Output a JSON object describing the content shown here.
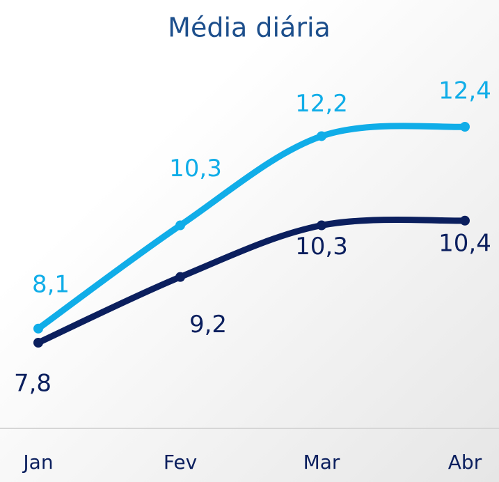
{
  "chart_data": {
    "type": "line",
    "title": "Média diária",
    "categories": [
      "Jan",
      "Fev",
      "Mar",
      "Abr"
    ],
    "series": [
      {
        "color": "#10ade8",
        "values": [
          8.1,
          10.3,
          12.2,
          12.4
        ],
        "value_labels": [
          "8,1",
          "10,3",
          "12,2",
          "12,4"
        ]
      },
      {
        "color": "#0b1f5e",
        "values": [
          7.8,
          9.2,
          10.3,
          10.4
        ],
        "value_labels": [
          "7,8",
          "9,2",
          "10,3",
          "10,4"
        ]
      }
    ]
  }
}
